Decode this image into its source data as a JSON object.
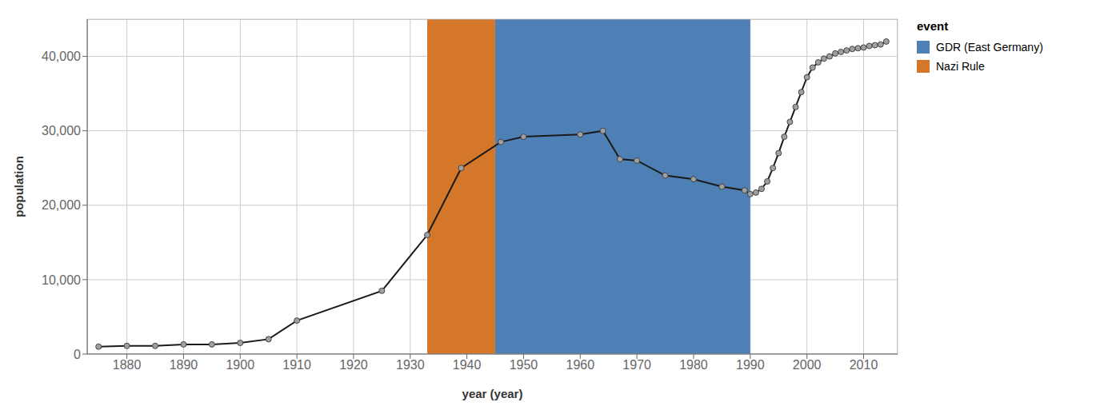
{
  "chart_data": {
    "type": "line",
    "x_label": "year (year)",
    "y_label": "population",
    "x": [
      1875,
      1880,
      1885,
      1890,
      1895,
      1900,
      1905,
      1910,
      1925,
      1933,
      1939,
      1946,
      1950,
      1960,
      1964,
      1967,
      1970,
      1975,
      1980,
      1985,
      1989,
      1990,
      1991,
      1992,
      1993,
      1994,
      1995,
      1996,
      1997,
      1998,
      1999,
      2000,
      2001,
      2002,
      2003,
      2004,
      2005,
      2006,
      2007,
      2008,
      2009,
      2010,
      2011,
      2012,
      2013,
      2014
    ],
    "values": [
      1000,
      1100,
      1100,
      1300,
      1300,
      1500,
      2000,
      4500,
      8500,
      16000,
      25000,
      28500,
      29200,
      29500,
      30000,
      26200,
      26000,
      24000,
      23500,
      22500,
      22000,
      21500,
      21700,
      22200,
      23200,
      25000,
      27000,
      29200,
      31200,
      33200,
      35200,
      37200,
      38500,
      39200,
      39700,
      40000,
      40400,
      40600,
      40800,
      41000,
      41100,
      41200,
      41400,
      41500,
      41600,
      42000
    ],
    "color": "#1a1a1a",
    "marker": "o",
    "spans": [
      {
        "label": "GDR (East Germany)",
        "start": 1945,
        "end": 1990,
        "color": "#4e7fb5"
      },
      {
        "label": "Nazi Rule",
        "start": 1933,
        "end": 1945,
        "color": "#d4772a"
      }
    ],
    "legend_title": "event",
    "legend": "right",
    "grid": true,
    "xlim": [
      1873,
      2016
    ],
    "ylim": [
      0,
      45000
    ],
    "xticks": [
      1880,
      1890,
      1900,
      1910,
      1920,
      1930,
      1940,
      1950,
      1960,
      1970,
      1980,
      1990,
      2000,
      2010
    ],
    "yticks": [
      0,
      {
        "value": 10000,
        "label": "10,000"
      },
      {
        "value": 20000,
        "label": "20,000"
      },
      {
        "value": 30000,
        "label": "30,000"
      },
      {
        "value": 40000,
        "label": "40,000"
      }
    ]
  }
}
